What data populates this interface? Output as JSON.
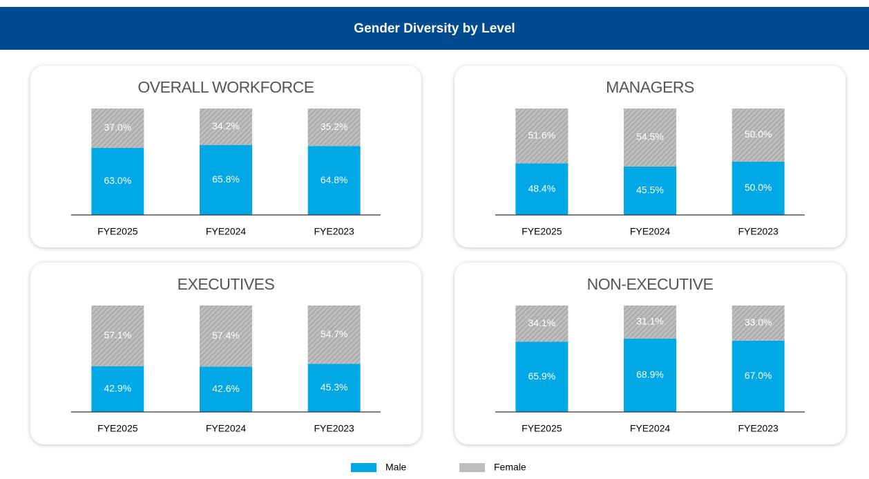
{
  "header": {
    "title": "Gender Diversity by Level"
  },
  "chart_data": [
    {
      "type": "bar",
      "stacked": true,
      "title": "OVERALL WORKFORCE",
      "categories": [
        "FYE2025",
        "FYE2024",
        "FYE2023"
      ],
      "ylim": [
        0,
        100
      ],
      "series": [
        {
          "name": "Male",
          "color": "#00a9e6",
          "values": [
            63.0,
            65.8,
            64.8
          ],
          "value_labels": [
            "63.0%",
            "65.8%",
            "64.8%"
          ]
        },
        {
          "name": "Female",
          "color": "#bdbdbd",
          "hatch": true,
          "values": [
            37.0,
            34.2,
            35.2
          ],
          "value_labels": [
            "37.0%",
            "34.2%",
            "35.2%"
          ]
        }
      ]
    },
    {
      "type": "bar",
      "stacked": true,
      "title": "MANAGERS",
      "categories": [
        "FYE2025",
        "FYE2024",
        "FYE2023"
      ],
      "ylim": [
        0,
        100
      ],
      "series": [
        {
          "name": "Male",
          "color": "#00a9e6",
          "values": [
            48.4,
            45.5,
            50.0
          ],
          "value_labels": [
            "48.4%",
            "45.5%",
            "50.0%"
          ]
        },
        {
          "name": "Female",
          "color": "#bdbdbd",
          "hatch": true,
          "values": [
            51.6,
            54.5,
            50.0
          ],
          "value_labels": [
            "51.6%",
            "54.5%",
            "50.0%"
          ]
        }
      ]
    },
    {
      "type": "bar",
      "stacked": true,
      "title": "EXECUTIVES",
      "categories": [
        "FYE2025",
        "FYE2024",
        "FYE2023"
      ],
      "ylim": [
        0,
        100
      ],
      "series": [
        {
          "name": "Male",
          "color": "#00a9e6",
          "values": [
            42.9,
            42.6,
            45.3
          ],
          "value_labels": [
            "42.9%",
            "42.6%",
            "45.3%"
          ]
        },
        {
          "name": "Female",
          "color": "#bdbdbd",
          "hatch": true,
          "values": [
            57.1,
            57.4,
            54.7
          ],
          "value_labels": [
            "57.1%",
            "57.4%",
            "54.7%"
          ]
        }
      ]
    },
    {
      "type": "bar",
      "stacked": true,
      "title": "NON-EXECUTIVE",
      "categories": [
        "FYE2025",
        "FYE2024",
        "FYE2023"
      ],
      "ylim": [
        0,
        100
      ],
      "series": [
        {
          "name": "Male",
          "color": "#00a9e6",
          "values": [
            65.9,
            68.9,
            67.0
          ],
          "value_labels": [
            "65.9%",
            "68.9%",
            "67.0%"
          ]
        },
        {
          "name": "Female",
          "color": "#bdbdbd",
          "hatch": true,
          "values": [
            34.1,
            31.1,
            33.0
          ],
          "value_labels": [
            "34.1%",
            "31.1%",
            "33.0%"
          ]
        }
      ]
    }
  ]
}
